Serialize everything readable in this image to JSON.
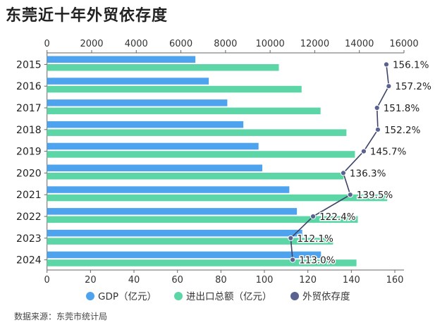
{
  "chart_data": {
    "type": "bar",
    "orientation": "horizontal",
    "title": "东莞近十年外贸依存度",
    "source": "数据来源：东莞市统计局",
    "categories": [
      "2015",
      "2016",
      "2017",
      "2018",
      "2019",
      "2020",
      "2021",
      "2022",
      "2023",
      "2024"
    ],
    "top_axis": {
      "range": [
        0,
        16000
      ],
      "ticks": [
        "0",
        "2000",
        "4000",
        "6000",
        "8000",
        "10000",
        "12000",
        "14000",
        "16000"
      ]
    },
    "bottom_axis": {
      "range": [
        0,
        160
      ],
      "ticks": [
        "0",
        "20",
        "40",
        "60",
        "80",
        "100",
        "120",
        "140",
        "160"
      ]
    },
    "series": [
      {
        "name": "GDP（亿元）",
        "type": "bar",
        "axis": "top",
        "color": "#4da3ee",
        "values": [
          6650,
          7250,
          8080,
          8800,
          9480,
          9650,
          10860,
          11200,
          11440,
          12280
        ]
      },
      {
        "name": "进出口总额（亿元）",
        "type": "bar",
        "axis": "top",
        "color": "#5cd6a6",
        "values": [
          10390,
          11410,
          12260,
          13420,
          13800,
          13290,
          15250,
          13930,
          12820,
          13870
        ]
      },
      {
        "name": "外贸依存度",
        "type": "line",
        "axis": "bottom",
        "color": "#5a6290",
        "values": [
          156.1,
          157.2,
          151.8,
          152.2,
          145.7,
          136.3,
          139.5,
          122.4,
          112.1,
          113.0
        ],
        "labels": [
          "156.1%",
          "157.2%",
          "151.8%",
          "152.2%",
          "145.7%",
          "136.3%",
          "139.5%",
          "122.4%",
          "112.1%",
          "113.0%"
        ]
      }
    ],
    "legend_position": "bottom",
    "grid": false
  }
}
